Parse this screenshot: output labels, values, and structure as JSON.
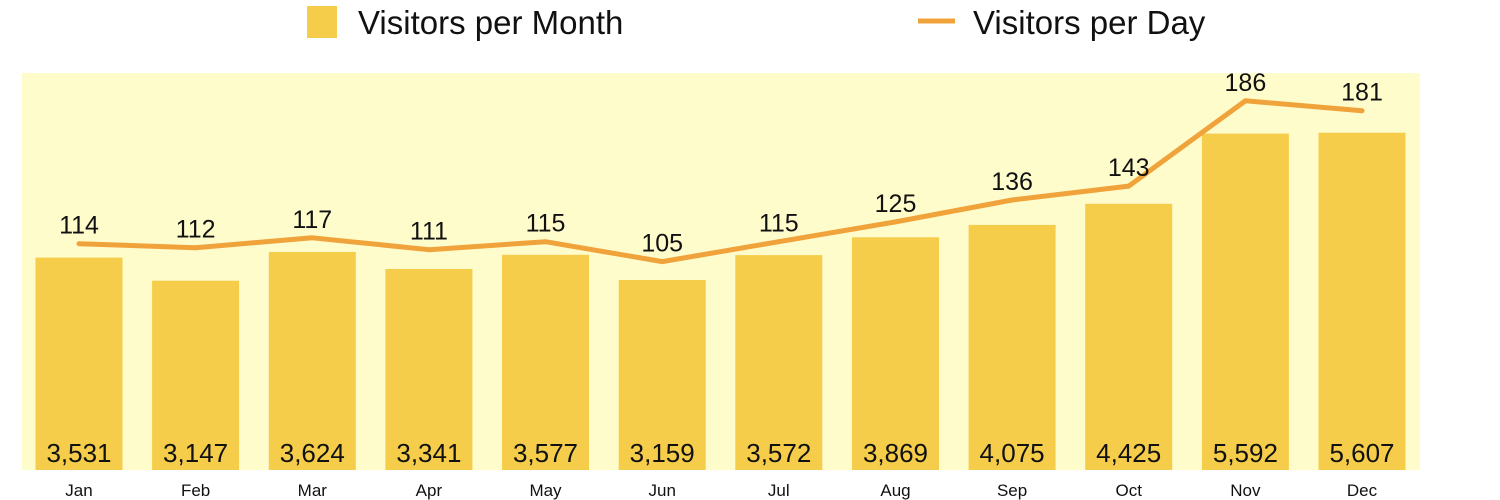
{
  "chart_data": {
    "type": "bar",
    "categories": [
      "Jan",
      "Feb",
      "Mar",
      "Apr",
      "May",
      "Jun",
      "Jul",
      "Aug",
      "Sep",
      "Oct",
      "Nov",
      "Dec"
    ],
    "series": [
      {
        "name": "Visitors per Month",
        "type": "bar",
        "values": [
          3531,
          3147,
          3624,
          3341,
          3577,
          3159,
          3572,
          3869,
          4075,
          4425,
          5592,
          5607
        ],
        "value_labels": [
          "3,531",
          "3,147",
          "3,624",
          "3,341",
          "3,577",
          "3,159",
          "3,572",
          "3,869",
          "4,075",
          "4,425",
          "5,592",
          "5,607"
        ],
        "color": "#F5CD4A"
      },
      {
        "name": "Visitors per Day",
        "type": "line",
        "values": [
          114,
          112,
          117,
          111,
          115,
          105,
          115,
          125,
          136,
          143,
          186,
          181
        ],
        "value_labels": [
          "114",
          "112",
          "117",
          "111",
          "115",
          "105",
          "115",
          "125",
          "136",
          "143",
          "186",
          "181"
        ],
        "color": "#F0A33A"
      }
    ],
    "title": "",
    "xlabel": "",
    "ylabel": "",
    "bar_ylim": [
      0,
      6600
    ],
    "line_ylim": [
      0,
      200
    ],
    "plot_background": "#FFFCCC",
    "grid": false,
    "legend_position": "top"
  }
}
